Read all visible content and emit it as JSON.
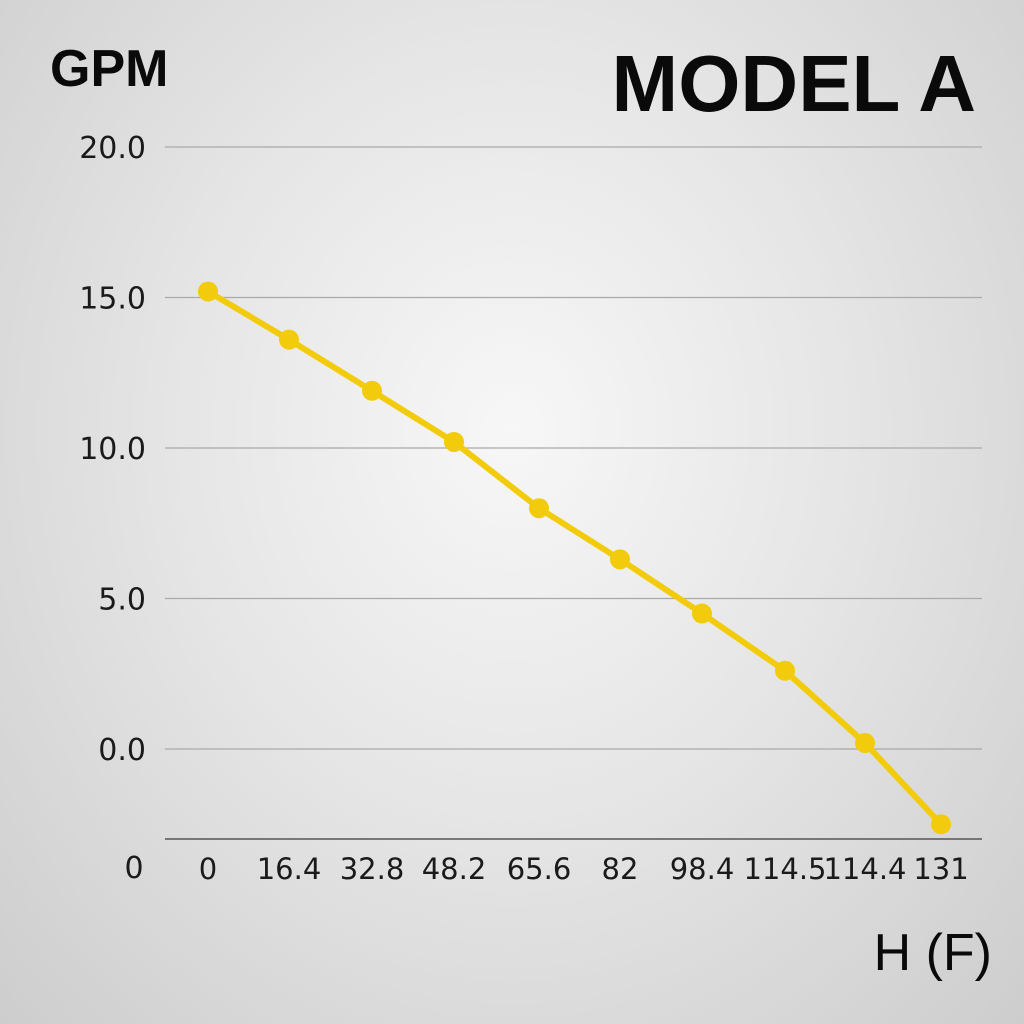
{
  "chart_data": {
    "type": "line",
    "title": "MODEL A",
    "ylabel": "GPM",
    "xlabel": "H (F)",
    "origin_label": "0",
    "categories": [
      "0",
      "16.4",
      "32.8",
      "48.2",
      "65.6",
      "82",
      "98.4",
      "114.5",
      "114.4",
      "131"
    ],
    "yticks": [
      "20.0",
      "15.0",
      "10.0",
      "5.0",
      "0.0"
    ],
    "ylim": [
      -3,
      20
    ],
    "grid": true,
    "series": [
      {
        "values": [
          15.2,
          13.6,
          11.9,
          10.2,
          8.0,
          6.3,
          4.5,
          2.6,
          0.2,
          -2.5
        ],
        "color": "#f2cc0c"
      }
    ]
  }
}
